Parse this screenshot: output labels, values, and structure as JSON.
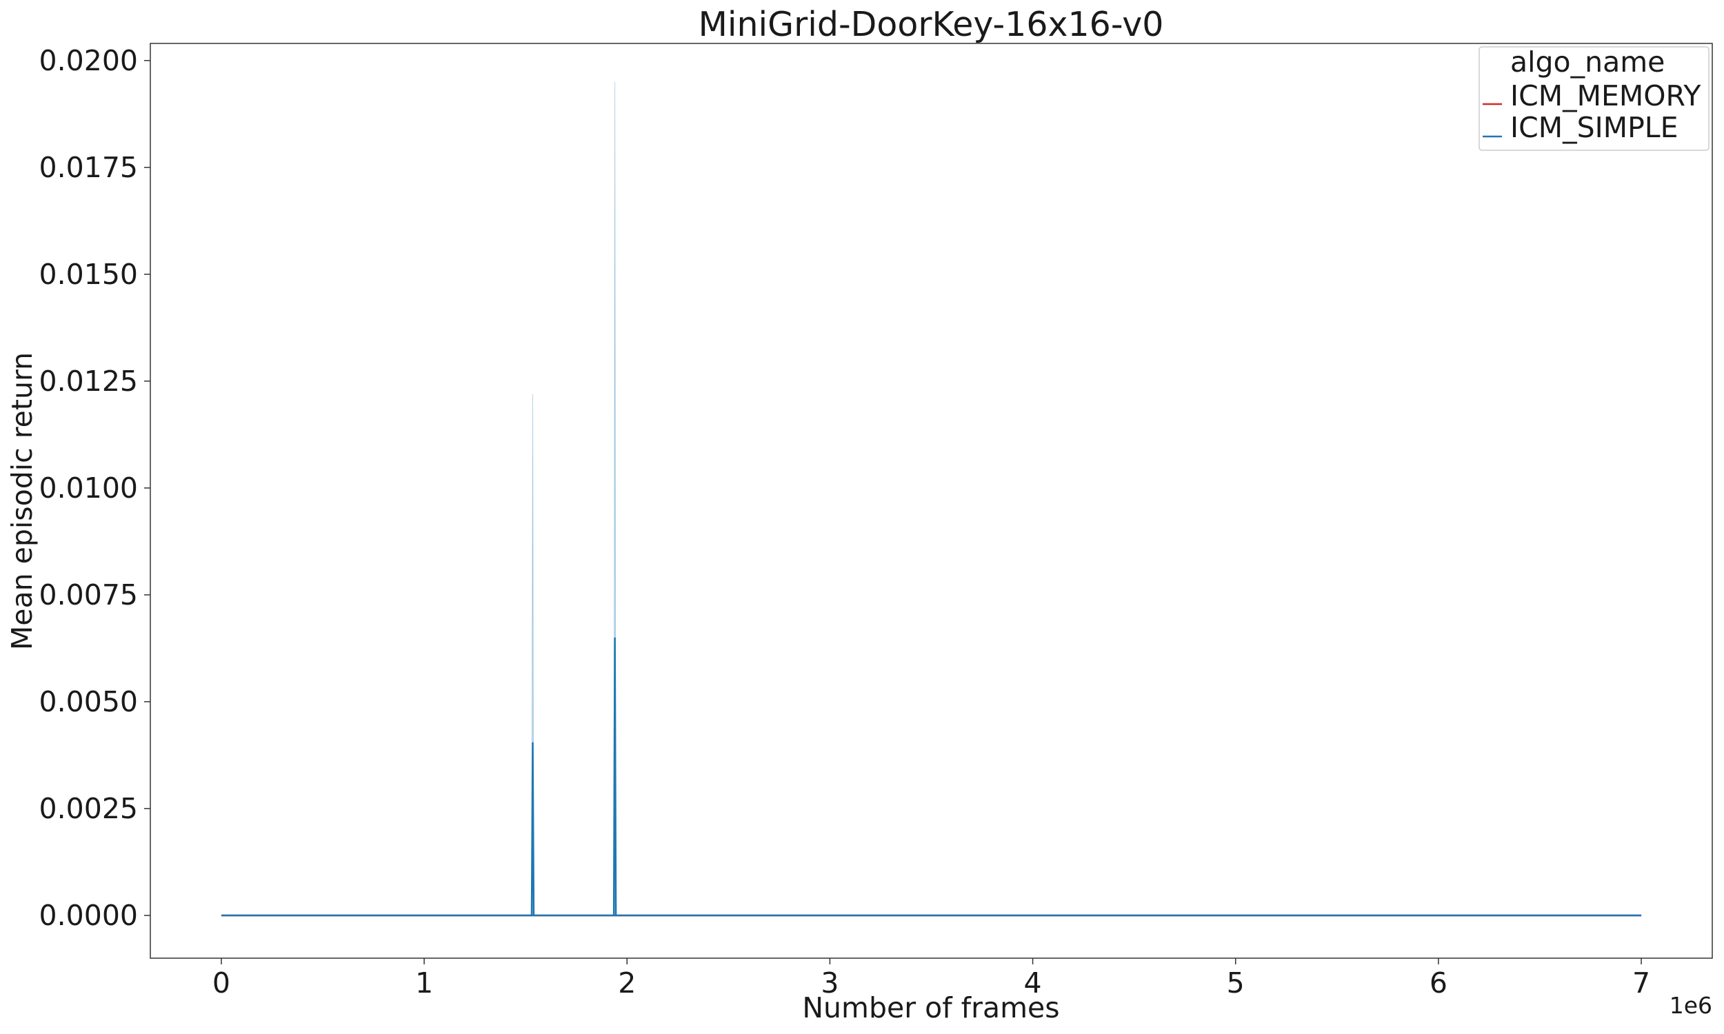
{
  "chart_data": {
    "type": "line",
    "title": "MiniGrid-DoorKey-16x16-v0",
    "xlabel": "Number of frames",
    "ylabel": "Mean episodic return",
    "x_offset_label": "1e6",
    "xlim": [
      -350000,
      7350000
    ],
    "ylim": [
      -0.001,
      0.0204
    ],
    "x_ticks": [
      0,
      1000000,
      2000000,
      3000000,
      4000000,
      5000000,
      6000000,
      7000000
    ],
    "x_tick_labels": [
      "0",
      "1",
      "2",
      "3",
      "4",
      "5",
      "6",
      "7"
    ],
    "y_ticks": [
      0,
      0.0025,
      0.005,
      0.0075,
      0.01,
      0.0125,
      0.015,
      0.0175,
      0.02
    ],
    "y_tick_labels": [
      "0.0000",
      "0.0025",
      "0.0050",
      "0.0075",
      "0.0100",
      "0.0125",
      "0.0150",
      "0.0175",
      "0.0200"
    ],
    "grid": false,
    "legend": {
      "title": "algo_name",
      "placement": "top-right"
    },
    "series": [
      {
        "name": "ICM_MEMORY",
        "color": "#d62728",
        "x": [
          0,
          7000000
        ],
        "y": [
          0,
          0
        ]
      },
      {
        "name": "ICM_SIMPLE",
        "color": "#1f77b4",
        "x": [
          0,
          1530000,
          1535000,
          1540000,
          1935000,
          1940000,
          1945000,
          7000000
        ],
        "y": [
          0,
          0,
          0.00405,
          0,
          0,
          0.0065,
          0,
          0
        ],
        "band_upper": [
          0,
          0,
          0.0122,
          0,
          0,
          0.0195,
          0,
          0
        ],
        "band_lower": [
          0,
          0,
          0,
          0,
          0,
          0,
          0,
          0
        ]
      }
    ]
  }
}
